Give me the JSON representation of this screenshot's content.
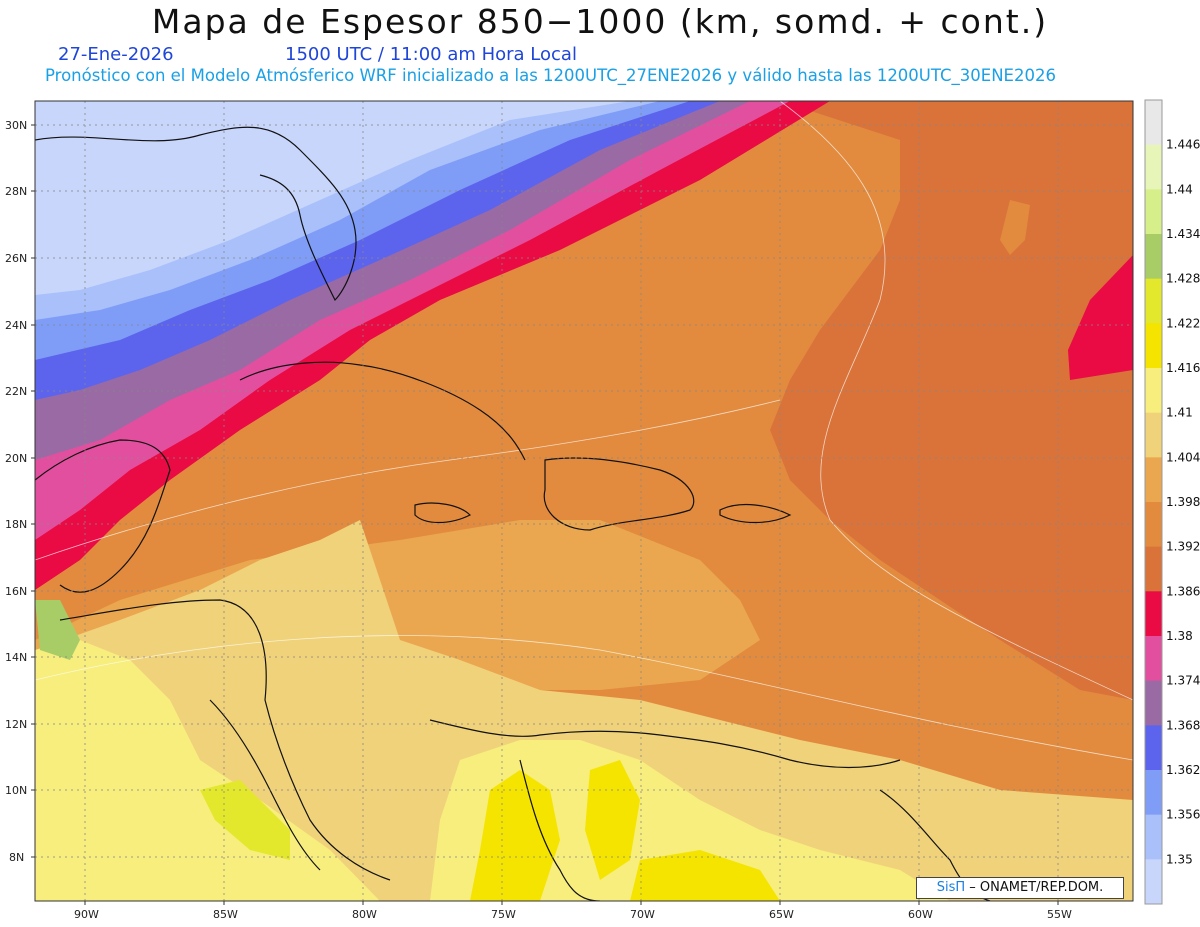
{
  "title": "Mapa de Espesor 850−1000 (km, somd. + cont.)",
  "date": "27-Ene-2026",
  "time": "1500 UTC / 11:00 am Hora Local",
  "subtitle": "Pronóstico con el Modelo Atmósferico WRF inicializado a las 1200UTC_27ENE2026 y válido hasta las  1200UTC_30ENE2026",
  "credit_logo": "SisΠ",
  "credit_text": "– ONAMET/REP.DOM.",
  "lat_labels": [
    "30N",
    "28N",
    "26N",
    "24N",
    "22N",
    "20N",
    "18N",
    "16N",
    "14N",
    "12N",
    "10N",
    "8N"
  ],
  "lon_labels": [
    "90W",
    "85W",
    "80W",
    "75W",
    "70W",
    "65W",
    "60W",
    "55W"
  ],
  "colorbar": {
    "labels": [
      "1.446",
      "1.44",
      "1.434",
      "1.428",
      "1.422",
      "1.416",
      "1.41",
      "1.404",
      "1.398",
      "1.392",
      "1.386",
      "1.38",
      "1.374",
      "1.368",
      "1.362",
      "1.356",
      "1.35"
    ],
    "colors": [
      "#e8e8e8",
      "#e8f5b8",
      "#d6ef8a",
      "#a8cd66",
      "#e3e82c",
      "#f4e400",
      "#f7ee7e",
      "#f0d27a",
      "#eaa74f",
      "#e28b3f",
      "#d9733a",
      "#ea0a44",
      "#e34f9f",
      "#9a6aa4",
      "#5c64ee",
      "#7f9df7",
      "#a9c0fb",
      "#c8d6fb"
    ]
  }
}
